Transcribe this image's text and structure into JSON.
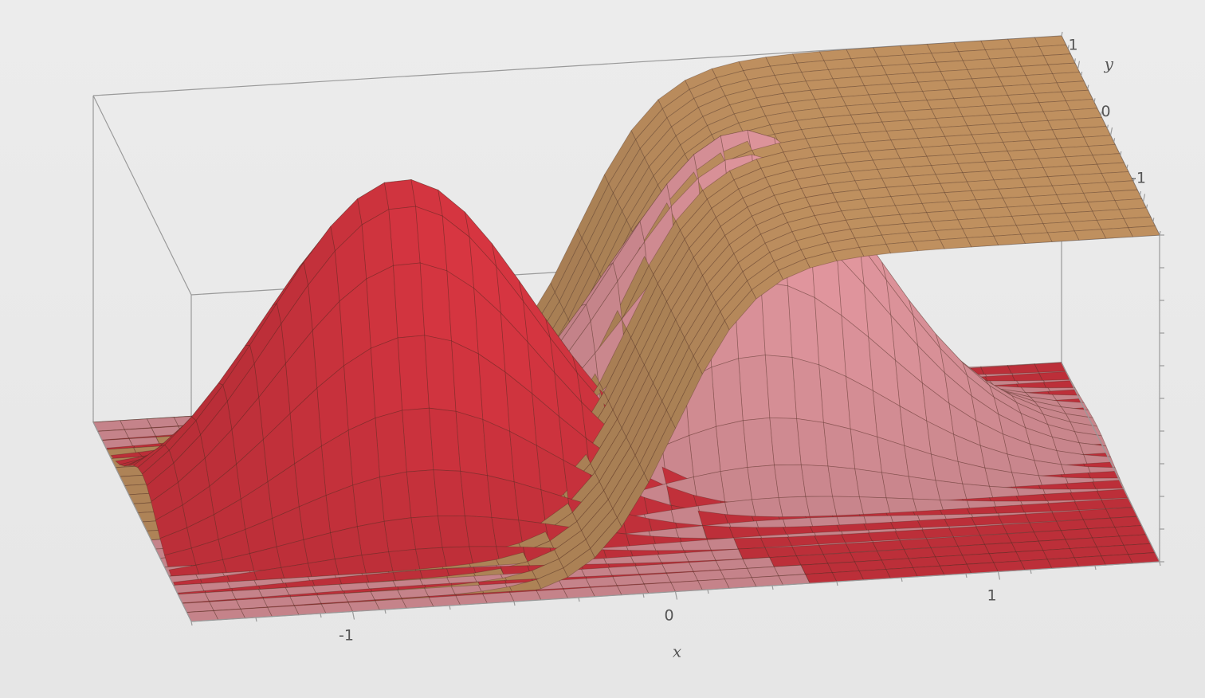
{
  "chart_data": {
    "type": "surface3d",
    "title": "",
    "xlabel": "x",
    "ylabel": "y",
    "x_ticks": [
      "-1",
      "0",
      "1"
    ],
    "y_ticks": [
      "1",
      "0",
      "-1"
    ],
    "xlim": [
      -1.5,
      1.5
    ],
    "ylim": [
      -1.5,
      1.5
    ],
    "zlim": [
      0,
      1
    ],
    "series": [
      {
        "function": "0.5*(1+tanh(4*x))",
        "color": "#d4a06a",
        "min": 0,
        "max": 1
      },
      {
        "function": "exp(-3*(x+0.7)^2 - 3*y^2) * (1 - step)",
        "color": "#e53945",
        "peak_x": -0.7,
        "peak_y": 0,
        "peak_z": 1
      },
      {
        "function": "exp(-3*(x-0.4)^2 - 3*(y-0.4)^2)",
        "color": "#f0a0a8",
        "peak_x": 0.4,
        "peak_y": 0.4,
        "peak_z": 1
      }
    ],
    "grid": true
  }
}
